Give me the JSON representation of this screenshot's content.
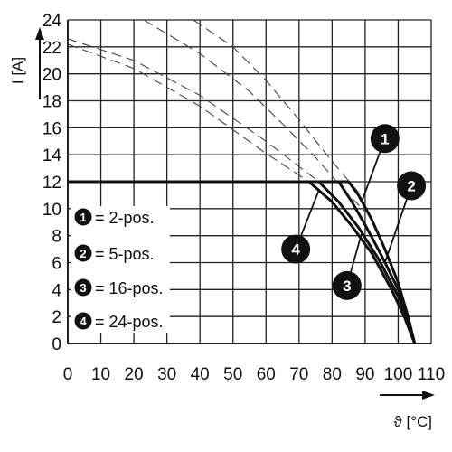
{
  "chart_data": {
    "type": "line",
    "xlabel": "ϑ [°C]",
    "ylabel": "I [A]",
    "xlim": [
      0,
      110
    ],
    "ylim": [
      0,
      24
    ],
    "x_ticks": [
      "0",
      "10",
      "20",
      "30",
      "40",
      "50",
      "60",
      "70",
      "80",
      "90",
      "100",
      "110"
    ],
    "y_ticks": [
      "0",
      "2",
      "4",
      "6",
      "8",
      "10",
      "12",
      "14",
      "16",
      "18",
      "20",
      "22",
      "24"
    ],
    "grid": true,
    "legend": [
      {
        "marker": "1",
        "text": "= 2-pos."
      },
      {
        "marker": "2",
        "text": "= 5-pos."
      },
      {
        "marker": "3",
        "text": "= 16-pos."
      },
      {
        "marker": "4",
        "text": "= 24-pos."
      }
    ],
    "legend_position": "bottom-left",
    "series": [
      {
        "marker": "1",
        "style": "solid",
        "x": [
          0,
          85,
          88,
          92,
          96,
          100,
          103,
          105
        ],
        "y": [
          12,
          12,
          11,
          9.2,
          7,
          4.5,
          2,
          0
        ]
      },
      {
        "marker": "2",
        "style": "solid",
        "x": [
          0,
          82,
          86,
          90,
          95,
          100,
          103,
          105
        ],
        "y": [
          12,
          12,
          10.5,
          8.8,
          6.5,
          4,
          1.8,
          0
        ]
      },
      {
        "marker": "3",
        "style": "solid",
        "x": [
          0,
          76,
          82,
          88,
          94,
          100,
          103,
          105
        ],
        "y": [
          12,
          12,
          10.5,
          8.6,
          6.3,
          3.5,
          1.7,
          0
        ]
      },
      {
        "marker": "4",
        "style": "solid",
        "x": [
          0,
          73,
          80,
          86,
          92,
          98,
          102,
          105
        ],
        "y": [
          12,
          12,
          10.5,
          8.7,
          6.7,
          4,
          1.9,
          0
        ]
      },
      {
        "marker": "1",
        "style": "dashed",
        "x": [
          38,
          50,
          60,
          70,
          80,
          88
        ],
        "y": [
          24,
          22,
          19.5,
          16.6,
          13.5,
          11.2
        ]
      },
      {
        "marker": "2",
        "style": "dashed",
        "x": [
          23,
          40,
          55,
          65,
          75,
          85,
          90
        ],
        "y": [
          24,
          21.5,
          18.7,
          16.3,
          13.8,
          11,
          9.8
        ]
      },
      {
        "marker": "3",
        "style": "dashed",
        "x": [
          0,
          20,
          40,
          60,
          76
        ],
        "y": [
          22.6,
          21,
          18.4,
          15,
          12
        ]
      },
      {
        "marker": "4",
        "style": "dashed",
        "x": [
          0,
          20,
          40,
          60,
          73
        ],
        "y": [
          22.2,
          20.4,
          17.6,
          14.1,
          12
        ]
      }
    ],
    "callouts": [
      {
        "label": "1",
        "x": 96,
        "y": 15.2
      },
      {
        "label": "2",
        "x": 104,
        "y": 11.7
      },
      {
        "label": "3",
        "x": 84.5,
        "y": 4.3
      },
      {
        "label": "4",
        "x": 69,
        "y": 7
      }
    ],
    "colors": {
      "line": "#111111",
      "grid": "#222222",
      "dash": "#444444",
      "callout_fill": "#111111"
    }
  }
}
